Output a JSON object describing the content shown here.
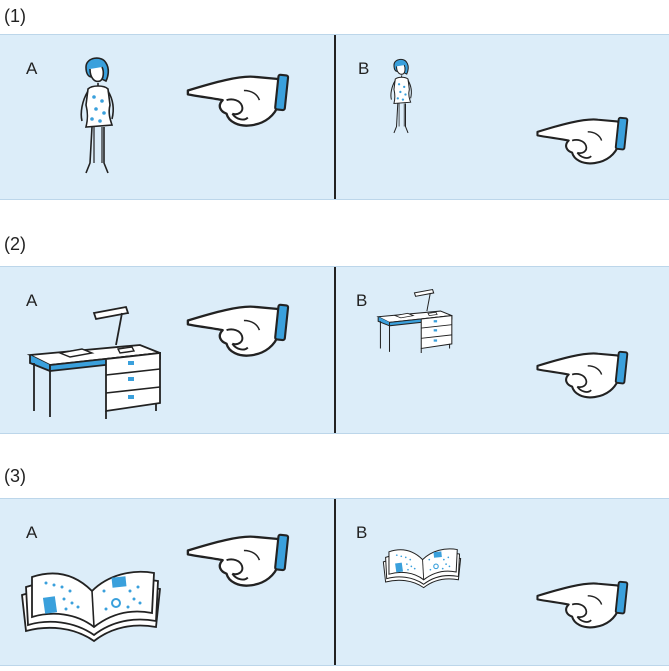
{
  "sections": [
    {
      "label": "(1)",
      "panels": [
        {
          "letter": "A"
        },
        {
          "letter": "B"
        }
      ]
    },
    {
      "label": "(2)",
      "panels": [
        {
          "letter": "A"
        },
        {
          "letter": "B"
        }
      ]
    },
    {
      "label": "(3)",
      "panels": [
        {
          "letter": "A"
        },
        {
          "letter": "B"
        }
      ]
    }
  ],
  "colors": {
    "panel_bg": "#dcedf9",
    "accent": "#3aa0dc",
    "line": "#222222"
  },
  "icons": {
    "hand": "pointing-hand-icon",
    "woman": "woman-figure-icon",
    "desk": "desk-icon",
    "book": "open-book-icon"
  }
}
